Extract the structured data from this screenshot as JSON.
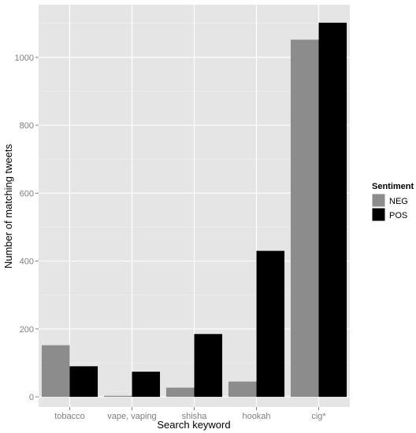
{
  "chart_data": {
    "type": "bar",
    "categories": [
      "tobacco",
      "vape, vaping",
      "shisha",
      "hookah",
      "cig*"
    ],
    "series": [
      {
        "name": "NEG",
        "values": [
          152,
          3,
          27,
          45,
          1052
        ],
        "color": "#8c8c8c"
      },
      {
        "name": "POS",
        "values": [
          90,
          74,
          185,
          430,
          1102
        ],
        "color": "#000000"
      }
    ],
    "xlabel": "Search keyword",
    "ylabel": "Number of matching tweets",
    "ylim": [
      -30,
      1155
    ],
    "yticks": [
      0,
      200,
      400,
      600,
      800,
      1000
    ],
    "grid": true,
    "legend": {
      "title": "Sentiment",
      "placement": "right"
    },
    "panel_color": "#e5e5e5"
  }
}
